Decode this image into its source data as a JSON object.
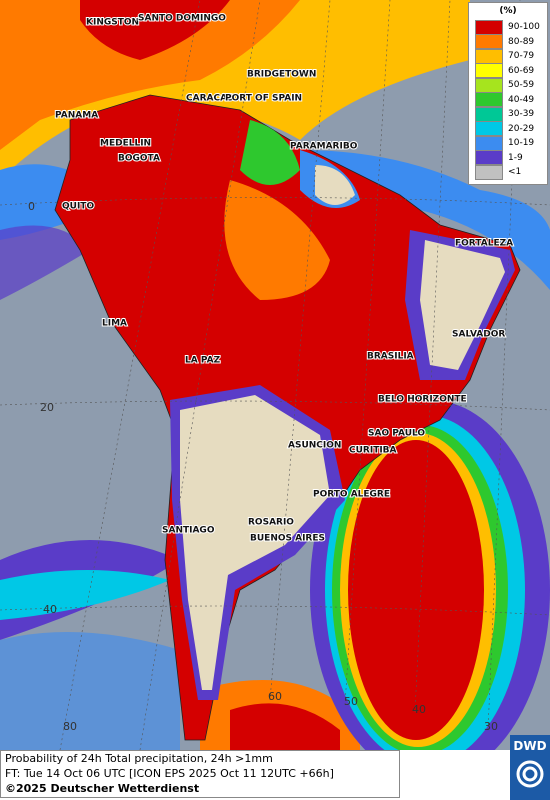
{
  "legend": {
    "unit": "(%)",
    "items": [
      {
        "label": "90-100",
        "color": "#d40000"
      },
      {
        "label": "80-89",
        "color": "#ff7a00"
      },
      {
        "label": "70-79",
        "color": "#ffbe00"
      },
      {
        "label": "60-69",
        "color": "#ffff00"
      },
      {
        "label": "50-59",
        "color": "#a6e41e"
      },
      {
        "label": "40-49",
        "color": "#2ec82e"
      },
      {
        "label": "30-39",
        "color": "#00c896"
      },
      {
        "label": "20-29",
        "color": "#00c8e6"
      },
      {
        "label": "10-19",
        "color": "#3c8cf0"
      },
      {
        "label": "1-9",
        "color": "#5a3cc8"
      },
      {
        "label": "<1",
        "color": "#c0c0c0"
      }
    ]
  },
  "cities": [
    "KINGSTON",
    "SANTO DOMINGO",
    "BRIDGETOWN",
    "CARACAS",
    "PORT OF SPAIN",
    "PANAMA",
    "MEDELLIN",
    "BOGOTA",
    "PARAMARIBO",
    "QUITO",
    "FORTALEZA",
    "LIMA",
    "SALVADOR",
    "BRASILIA",
    "LA PAZ",
    "BELO HORIZONTE",
    "SAO PAULO",
    "ASUNCION",
    "CURITIBA",
    "PORTO ALEGRE",
    "SANTIAGO",
    "ROSARIO",
    "BUENOS AIRES"
  ],
  "grid_labels": [
    "0",
    "20",
    "40",
    "80",
    "60",
    "50",
    "40",
    "30"
  ],
  "footer": {
    "title": "Probability of 24h Total precipitation, 24h >1mm",
    "forecast": "FT: Tue 14 Oct 06 UTC [ICON EPS 2025 Oct 11 12UTC +66h]",
    "copyright": "©2025 Deutscher Wetterdienst"
  },
  "logo": "DWD"
}
